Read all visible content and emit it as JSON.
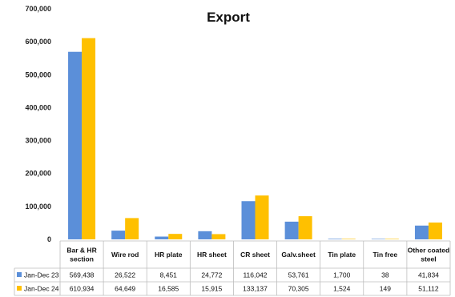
{
  "chart_data": {
    "type": "bar",
    "title": "Export",
    "categories": [
      [
        "Bar & HR",
        "section"
      ],
      [
        "Wire rod"
      ],
      [
        "HR plate"
      ],
      [
        "HR sheet"
      ],
      [
        "CR sheet"
      ],
      [
        "Galv.sheet"
      ],
      [
        "Tin plate"
      ],
      [
        "Tin free"
      ],
      [
        "Other coated",
        "steel"
      ]
    ],
    "series": [
      {
        "name": "Jan-Dec 23",
        "color": "#5B8FD9",
        "values": [
          569438,
          26522,
          8451,
          24772,
          116042,
          53761,
          1700,
          38,
          41834
        ],
        "labels": [
          "569,438",
          "26,522",
          "8,451",
          "24,772",
          "116,042",
          "53,761",
          "1,700",
          "38",
          "41,834"
        ]
      },
      {
        "name": "Jan-Dec 24",
        "color": "#FFC000",
        "values": [
          610934,
          64649,
          16585,
          15915,
          133137,
          70305,
          1524,
          149,
          51112
        ],
        "labels": [
          "610,934",
          "64,649",
          "16,585",
          "15,915",
          "133,137",
          "70,305",
          "1,524",
          "149",
          "51,112"
        ]
      }
    ],
    "ylim": [
      0,
      700000
    ],
    "yticks": [
      0,
      100000,
      200000,
      300000,
      400000,
      500000,
      600000,
      700000
    ],
    "ytick_labels": [
      "0",
      "100,000",
      "200,000",
      "300,000",
      "400,000",
      "500,000",
      "600,000",
      "700,000"
    ],
    "grid": false,
    "legend": "data-table-rows"
  }
}
